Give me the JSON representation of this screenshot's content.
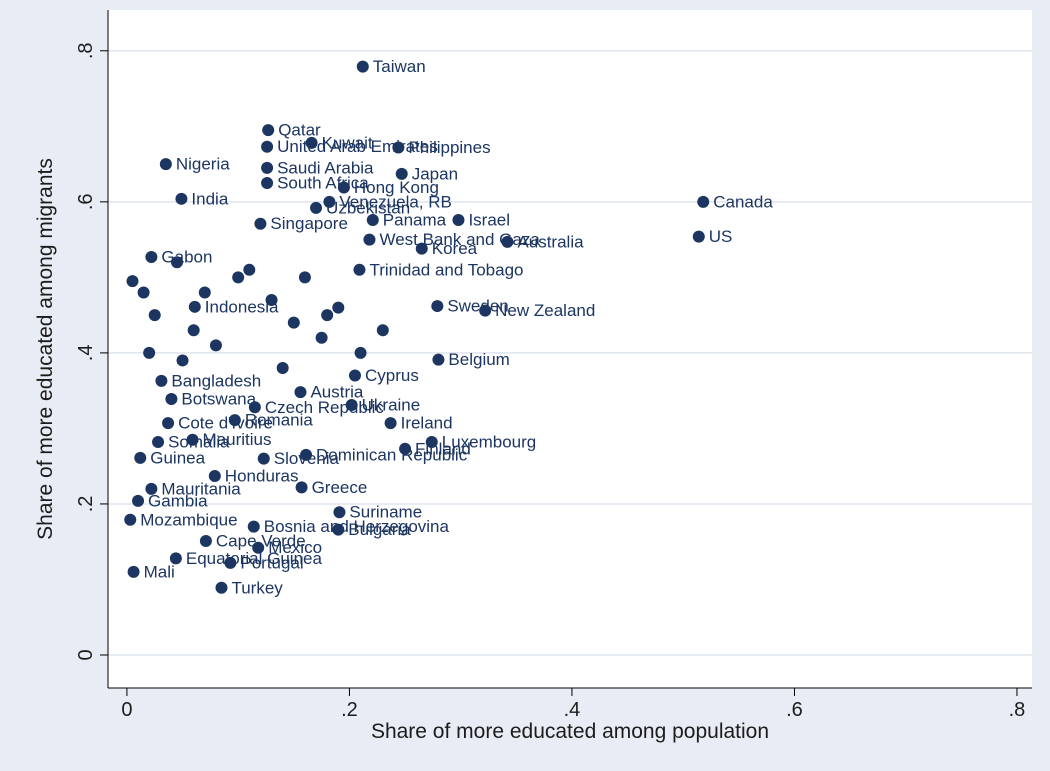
{
  "chart_data": {
    "type": "scatter",
    "xlabel": "Share of more educated among population",
    "ylabel": "Share of more educated among migrants",
    "xlim": [
      -0.017,
      0.8135
    ],
    "ylim": [
      -0.0437,
      0.854
    ],
    "xticks": [
      0,
      {
        "value": 0.2,
        "label": ".2"
      },
      {
        "value": 0.4,
        "label": ".4"
      },
      {
        "value": 0.6,
        "label": ".6"
      },
      {
        "value": 0.8,
        "label": ".8"
      }
    ],
    "yticks": [
      0,
      {
        "value": 0.2,
        "label": ".2"
      },
      {
        "value": 0.4,
        "label": ".4"
      },
      {
        "value": 0.6,
        "label": ".6"
      },
      {
        "value": 0.8,
        "label": ".8"
      }
    ],
    "grid": true,
    "color": "#1c3561",
    "labels": [
      "Taiwan",
      "Canada",
      "US",
      "Qatar",
      "Kuwait",
      "United Arab Emirates",
      "Philippines",
      "Nigeria",
      "Saudi Arabia",
      "Japan",
      "South Africa",
      "Hong Kong",
      "India",
      "Israel",
      "Panama",
      "Australia",
      "Singapore",
      "Korea",
      "Trinidad and Tobago",
      "Sweden",
      "New Zealand",
      "Indonesia",
      "Cyprus",
      "Bangladesh",
      "Austria",
      "Botswana",
      "Czech Republic",
      "Ukraine",
      "Romania",
      "Ireland",
      "Luxembourg",
      "Mauritius",
      "Somalia",
      "Finland",
      "Dominican Republic",
      "Slovenia",
      "Honduras",
      "Greece",
      "Mauritania",
      "Gambia",
      "Suriname",
      "Bosnia and Herzegovina",
      "Bulgaria",
      "Mozambique",
      "Mexico",
      "Portugal",
      "Turkey",
      "Mali",
      "Equatorial Guinea",
      "Cape Verde",
      "Venezuela, RB",
      "Uzbekistan",
      "West Bank and Gaza",
      "Belgium",
      "Gabon",
      "Guinea",
      "Cote d'Ivoire",
      null,
      null,
      null,
      null,
      null,
      null,
      null,
      null,
      null,
      null,
      null,
      null,
      null,
      null,
      null,
      null,
      null,
      null,
      null,
      null
    ],
    "x": [
      0.212,
      0.518,
      0.514,
      0.127,
      0.166,
      0.126,
      0.244,
      0.035,
      0.126,
      0.247,
      0.126,
      0.195,
      0.049,
      0.298,
      0.221,
      0.342,
      0.12,
      0.265,
      0.209,
      0.279,
      0.322,
      0.061,
      0.205,
      0.031,
      0.156,
      0.04,
      0.115,
      0.202,
      0.097,
      0.237,
      0.274,
      0.059,
      0.028,
      0.25,
      0.161,
      0.123,
      0.079,
      0.157,
      0.022,
      0.01,
      0.191,
      0.114,
      0.19,
      0.003,
      0.118,
      0.093,
      0.085,
      0.006,
      0.044,
      0.071,
      0.182,
      0.17,
      0.218,
      0.28,
      0.022,
      0.012,
      0.037,
      0.005,
      0.015,
      0.025,
      0.045,
      0.06,
      0.08,
      0.1,
      0.13,
      0.15,
      0.175,
      0.19,
      0.21,
      0.23,
      0.02,
      0.05,
      0.07,
      0.11,
      0.14,
      0.16,
      0.18
    ],
    "values": [
      0.779,
      0.6,
      0.554,
      0.695,
      0.678,
      0.673,
      0.672,
      0.65,
      0.645,
      0.637,
      0.625,
      0.619,
      0.604,
      0.576,
      0.576,
      0.547,
      0.571,
      0.538,
      0.51,
      0.462,
      0.456,
      0.461,
      0.37,
      0.363,
      0.348,
      0.339,
      0.328,
      0.331,
      0.311,
      0.307,
      0.282,
      0.285,
      0.282,
      0.273,
      0.265,
      0.26,
      0.237,
      0.222,
      0.22,
      0.204,
      0.189,
      0.17,
      0.166,
      0.179,
      0.142,
      0.122,
      0.089,
      0.11,
      0.128,
      0.151,
      0.6,
      0.592,
      0.55,
      0.391,
      0.527,
      0.261,
      0.307,
      0.495,
      0.48,
      0.45,
      0.52,
      0.43,
      0.41,
      0.5,
      0.47,
      0.44,
      0.42,
      0.46,
      0.4,
      0.43,
      0.4,
      0.39,
      0.48,
      0.51,
      0.38,
      0.5,
      0.45
    ]
  }
}
